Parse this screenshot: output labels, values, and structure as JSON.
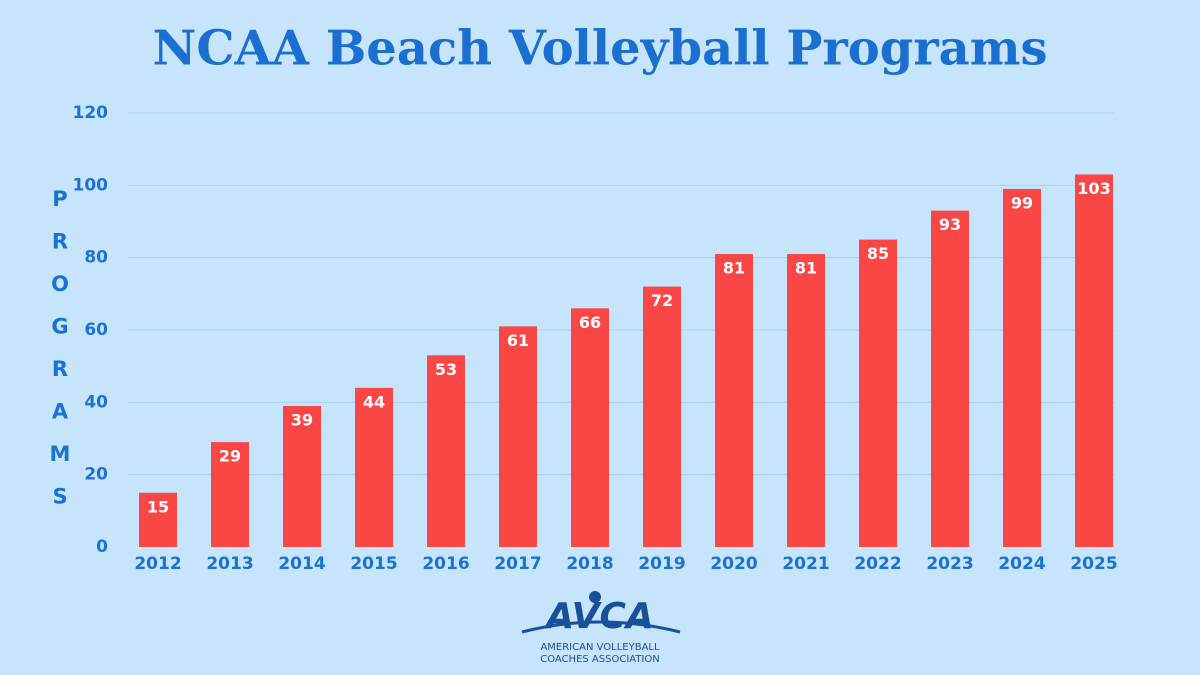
{
  "chart_data": {
    "type": "bar",
    "title": "NCAA Beach Volleyball Programs",
    "y_label": "PROGRAMS",
    "categories": [
      "2012",
      "2013",
      "2014",
      "2015",
      "2016",
      "2017",
      "2018",
      "2019",
      "2020",
      "2021",
      "2022",
      "2023",
      "2024",
      "2025"
    ],
    "values": [
      15,
      29,
      39,
      44,
      53,
      61,
      66,
      72,
      81,
      81,
      85,
      93,
      99,
      103
    ],
    "color": "#fb4646",
    "ylim": [
      0,
      120
    ],
    "yticks": [
      0,
      20,
      40,
      60,
      80,
      100,
      120
    ],
    "grid": true,
    "annotations": [
      "AVCA",
      "AMERICAN VOLLEYBALL",
      "COACHES ASSOCIATION"
    ]
  }
}
